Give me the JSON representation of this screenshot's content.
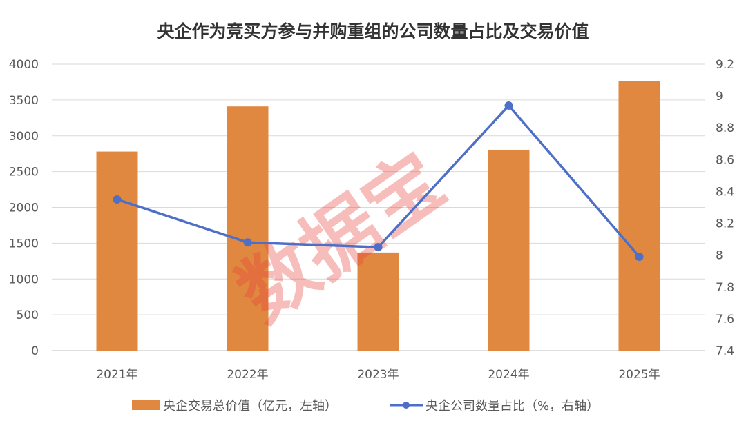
{
  "chart_data": {
    "type": "bar+line",
    "title": "央企作为竞买方参与并购重组的公司数量占比及交易价值",
    "categories": [
      "2021年",
      "2022年",
      "2023年",
      "2024年",
      "2025年"
    ],
    "series": [
      {
        "name": "央企交易总价值（亿元，左轴）",
        "type": "bar",
        "axis": "left",
        "color": "#e0883f",
        "values": [
          2780,
          3410,
          1370,
          2805,
          3760
        ]
      },
      {
        "name": "央企公司数量占比（%，右轴）",
        "type": "line",
        "axis": "right",
        "color": "#4e6fc8",
        "values": [
          8.35,
          8.08,
          8.05,
          8.94,
          7.99
        ]
      }
    ],
    "left_axis": {
      "range": [
        0,
        4000
      ],
      "ticks": [
        "0",
        "500",
        "1000",
        "1500",
        "2000",
        "2500",
        "3000",
        "3500",
        "4000"
      ]
    },
    "right_axis": {
      "range": [
        7.4,
        9.2
      ],
      "ticks": [
        "7.4",
        "7.6",
        "7.8",
        "8",
        "8.2",
        "8.4",
        "8.6",
        "8.8",
        "9",
        "9.2"
      ]
    },
    "grid": "horizontal",
    "legend_position": "bottom",
    "watermark": "数据宝"
  }
}
